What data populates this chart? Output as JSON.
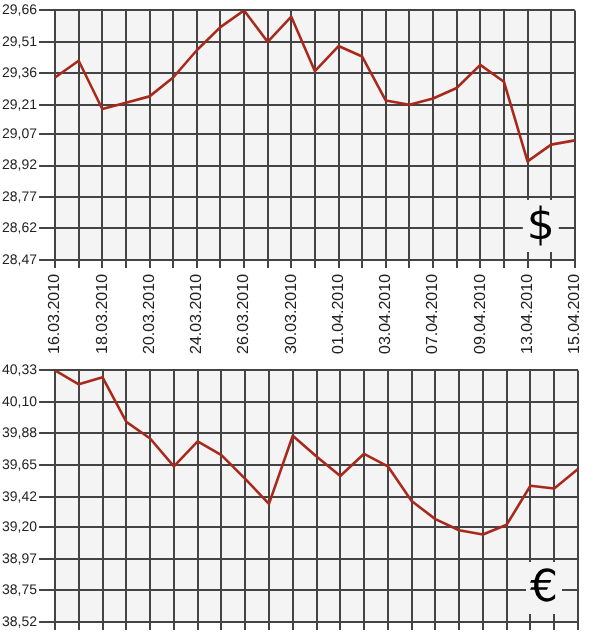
{
  "chart_data": [
    {
      "type": "line",
      "categories": [
        "16.03.2010",
        null,
        "18.03.2010",
        null,
        "20.03.2010",
        null,
        "24.03.2010",
        null,
        "26.03.2010",
        null,
        "30.03.2010",
        null,
        "01.04.2010",
        null,
        "03.04.2010",
        null,
        "07.04.2010",
        null,
        "09.04.2010",
        null,
        "13.04.2010",
        null,
        "15.04.2010"
      ],
      "series": [
        {
          "color": "#a8281c",
          "values": [
            29.34,
            29.42,
            29.19,
            29.22,
            29.25,
            29.34,
            29.47,
            29.58,
            29.66,
            29.51,
            29.63,
            29.37,
            29.49,
            29.44,
            29.23,
            29.21,
            29.24,
            29.29,
            29.4,
            29.32,
            28.94,
            29.02,
            29.04
          ]
        }
      ],
      "ylim": [
        28.47,
        29.66
      ],
      "yticks": [
        {
          "value": 28.47,
          "label": "28,47"
        },
        {
          "value": 28.62,
          "label": "28,62"
        },
        {
          "value": 28.77,
          "label": "28,77"
        },
        {
          "value": 28.92,
          "label": "28,92"
        },
        {
          "value": 29.07,
          "label": "29,07"
        },
        {
          "value": 29.21,
          "label": "29,21"
        },
        {
          "value": 29.36,
          "label": "29,36"
        },
        {
          "value": 29.51,
          "label": "29,51"
        },
        {
          "value": 29.66,
          "label": "29,66"
        }
      ],
      "annotations": [
        "$"
      ],
      "grid": true,
      "legend": false,
      "marker": "none"
    },
    {
      "type": "line",
      "categories": [
        "16.03.2010",
        null,
        "18.03.2010",
        null,
        "20.03.2010",
        null,
        "24.03.2010",
        null,
        "26.03.2010",
        null,
        "30.03.2010",
        null,
        "01.04.2010",
        null,
        "03.04.2010",
        null,
        "07.04.2010",
        null,
        "09.04.2010",
        null,
        "13.04.2010",
        null,
        "15.04.2010"
      ],
      "series": [
        {
          "color": "#a8281c",
          "values": [
            40.33,
            40.23,
            40.28,
            39.96,
            39.84,
            39.64,
            39.82,
            39.72,
            39.55,
            39.37,
            39.86,
            39.71,
            39.57,
            39.73,
            39.64,
            39.39,
            39.26,
            39.18,
            39.15,
            39.22,
            39.5,
            39.48,
            39.62
          ]
        }
      ],
      "ylim": [
        38.52,
        40.33
      ],
      "yticks": [
        {
          "value": 38.52,
          "label": "38,52"
        },
        {
          "value": 38.75,
          "label": "38,75"
        },
        {
          "value": 38.97,
          "label": "38,97"
        },
        {
          "value": 39.2,
          "label": "39,20"
        },
        {
          "value": 39.42,
          "label": "39,42"
        },
        {
          "value": 39.65,
          "label": "39,65"
        },
        {
          "value": 39.88,
          "label": "39,88"
        },
        {
          "value": 40.1,
          "label": "40,10"
        },
        {
          "value": 40.33,
          "label": "40,33"
        }
      ],
      "annotations": [
        "€"
      ],
      "grid": true,
      "legend": false,
      "marker": "none",
      "tick_labels": "y"
    }
  ]
}
